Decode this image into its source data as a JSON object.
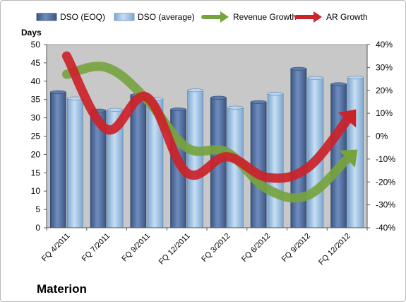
{
  "company": "Materion",
  "chart_data": {
    "type": "bar",
    "title": "",
    "categories": [
      "FQ 4/2011",
      "FQ 7/2011",
      "FQ 9/2011",
      "FQ 12/2011",
      "FQ 3/2012",
      "FQ 6/2012",
      "FQ 9/2012",
      "FQ 12/2012"
    ],
    "y_left": {
      "label": "Days",
      "ylim": [
        0,
        50
      ],
      "ticks": [
        "0",
        "5",
        "10",
        "15",
        "20",
        "25",
        "30",
        "35",
        "40",
        "45",
        "50"
      ]
    },
    "y_right": {
      "ylim": [
        -40,
        40
      ],
      "ticks": [
        "-40%",
        "-30%",
        "-20%",
        "-10%",
        "0%",
        "10%",
        "20%",
        "30%",
        "40%"
      ]
    },
    "series": [
      {
        "name": "DSO (EOQ)",
        "kind": "bar",
        "axis": "left",
        "color": "#4f6ea0",
        "values": [
          37.0,
          32.0,
          36.2,
          32.3,
          35.5,
          34.3,
          43.4,
          39.2
        ]
      },
      {
        "name": "DSO (average)",
        "kind": "bar",
        "axis": "left",
        "color": "#9dc3e6",
        "values": [
          35.3,
          32.2,
          35.2,
          37.5,
          32.8,
          36.6,
          40.9,
          41.0
        ]
      },
      {
        "name": "Revenue Growth",
        "kind": "arrow-line",
        "axis": "right",
        "color": "#77a33f",
        "values": [
          27,
          30,
          16,
          -5,
          -7,
          -23,
          -26,
          -10
        ]
      },
      {
        "name": "AR Growth",
        "kind": "arrow-line",
        "axis": "right",
        "color": "#cc2229",
        "values": [
          35,
          3,
          17,
          -16,
          -9,
          -18,
          -14,
          7
        ]
      }
    ],
    "legend": "top",
    "grid": false,
    "plot_background": "#c8c8c8"
  }
}
